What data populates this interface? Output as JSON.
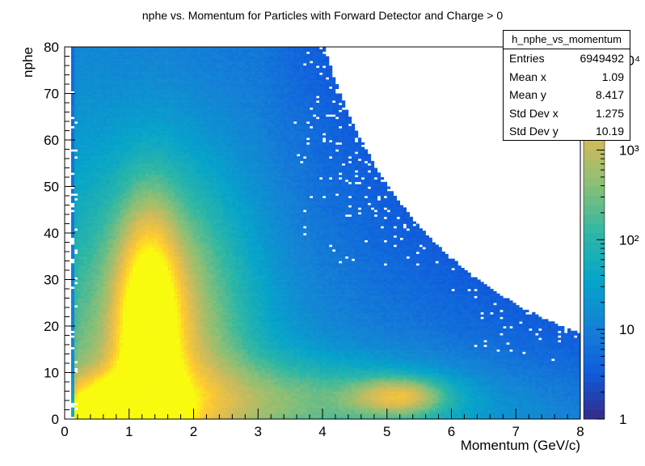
{
  "chart_data": {
    "type": "heatmap",
    "title": "nphe vs. Momentum for Particles with Forward Detector and Charge > 0",
    "xlabel": "Momentum (GeV/c)",
    "ylabel": "nphe",
    "xlim": [
      0,
      8
    ],
    "ylim": [
      0,
      80
    ],
    "x_ticks": [
      "0",
      "1",
      "2",
      "3",
      "4",
      "5",
      "6",
      "7",
      "8"
    ],
    "y_ticks": [
      "0",
      "10",
      "20",
      "30",
      "40",
      "50",
      "60",
      "70",
      "80"
    ],
    "z_scale": "log",
    "z_range": [
      1,
      10000
    ],
    "z_ticks": [
      "1",
      "10",
      "10²",
      "10³",
      "10⁴"
    ],
    "colormap": [
      "#352a87",
      "#0f5cdd",
      "#1481d6",
      "#06a4ca",
      "#2eb7a4",
      "#87bf77",
      "#d1bb59",
      "#fec832",
      "#f9fb0e"
    ],
    "features": [
      {
        "x": 0.9,
        "y": 2,
        "level": "max"
      },
      {
        "x": 1.3,
        "y": 25,
        "level": "high ridge"
      },
      {
        "x": 5.2,
        "y": 5,
        "level": "secondary blob"
      }
    ],
    "grid": false,
    "legend": "top-right"
  },
  "stats_box": {
    "name": "h_nphe_vs_momentum",
    "rows": [
      {
        "label": "Entries",
        "value": "6949492"
      },
      {
        "label": "Mean x",
        "value": "1.09"
      },
      {
        "label": "Mean y",
        "value": "8.417"
      },
      {
        "label": "Std Dev x",
        "value": "1.275"
      },
      {
        "label": "Std Dev y",
        "value": "10.19"
      }
    ]
  }
}
